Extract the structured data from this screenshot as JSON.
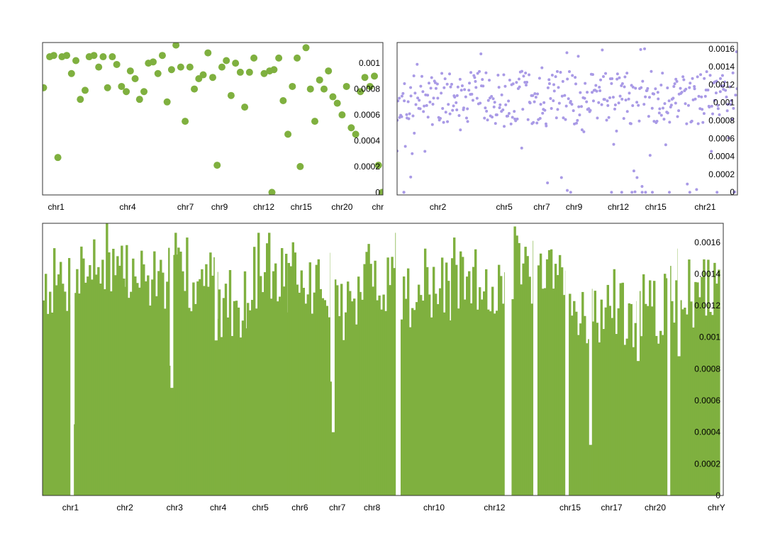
{
  "chart_data": [
    {
      "id": "scatter-top-left",
      "type": "scatter",
      "color": "#7fb03f",
      "point_style": "large-dot",
      "ylim": [
        -2e-05,
        0.00116
      ],
      "xlim": [
        0,
        1
      ],
      "yticks": [
        {
          "value": 0,
          "label": "0"
        },
        {
          "value": 0.0002,
          "label": "0.0002"
        },
        {
          "value": 0.0004,
          "label": "0.0004"
        },
        {
          "value": 0.0006,
          "label": "0.0006"
        },
        {
          "value": 0.0008,
          "label": "0.0008"
        },
        {
          "value": 0.001,
          "label": "0.001"
        }
      ],
      "xticks": [
        {
          "value": 0.04,
          "label": "chr1"
        },
        {
          "value": 0.25,
          "label": "chr4"
        },
        {
          "value": 0.42,
          "label": "chr7"
        },
        {
          "value": 0.52,
          "label": "chr9"
        },
        {
          "value": 0.65,
          "label": "chr12"
        },
        {
          "value": 0.76,
          "label": "chr15"
        },
        {
          "value": 0.88,
          "label": "chr20"
        },
        {
          "value": 0.985,
          "label": "chr"
        }
      ],
      "points": [
        [
          0.003,
          0.00081
        ],
        [
          0.021,
          0.00105
        ],
        [
          0.033,
          0.00106
        ],
        [
          0.045,
          0.00027
        ],
        [
          0.057,
          0.00105
        ],
        [
          0.071,
          0.00106
        ],
        [
          0.085,
          0.00092
        ],
        [
          0.098,
          0.00102
        ],
        [
          0.111,
          0.00072
        ],
        [
          0.125,
          0.00079
        ],
        [
          0.137,
          0.00105
        ],
        [
          0.151,
          0.00106
        ],
        [
          0.165,
          0.00097
        ],
        [
          0.178,
          0.00105
        ],
        [
          0.191,
          0.00081
        ],
        [
          0.205,
          0.00105
        ],
        [
          0.218,
          0.00099
        ],
        [
          0.232,
          0.00082
        ],
        [
          0.246,
          0.00078
        ],
        [
          0.258,
          0.00094
        ],
        [
          0.272,
          0.00088
        ],
        [
          0.285,
          0.00072
        ],
        [
          0.298,
          0.00078
        ],
        [
          0.311,
          0.001
        ],
        [
          0.325,
          0.00101
        ],
        [
          0.339,
          0.00092
        ],
        [
          0.352,
          0.00106
        ],
        [
          0.366,
          0.0007
        ],
        [
          0.379,
          0.00095
        ],
        [
          0.392,
          0.00114
        ],
        [
          0.406,
          0.00097
        ],
        [
          0.419,
          0.00055
        ],
        [
          0.433,
          0.00097
        ],
        [
          0.446,
          0.0008
        ],
        [
          0.459,
          0.00088
        ],
        [
          0.472,
          0.00091
        ],
        [
          0.486,
          0.00108
        ],
        [
          0.5,
          0.00089
        ],
        [
          0.513,
          0.00021
        ],
        [
          0.527,
          0.00097
        ],
        [
          0.54,
          0.00102
        ],
        [
          0.554,
          0.00075
        ],
        [
          0.567,
          0.001
        ],
        [
          0.581,
          0.00093
        ],
        [
          0.594,
          0.00066
        ],
        [
          0.608,
          0.00093
        ],
        [
          0.621,
          0.00104
        ],
        [
          0.651,
          0.00092
        ],
        [
          0.667,
          0.00094
        ],
        [
          0.68,
          0.00095
        ],
        [
          0.674,
          0.0
        ],
        [
          0.694,
          0.00104
        ],
        [
          0.707,
          0.00071
        ],
        [
          0.721,
          0.00045
        ],
        [
          0.734,
          0.00082
        ],
        [
          0.748,
          0.00104
        ],
        [
          0.757,
          0.0002
        ],
        [
          0.774,
          0.00112
        ],
        [
          0.787,
          0.0008
        ],
        [
          0.8,
          0.00055
        ],
        [
          0.814,
          0.00087
        ],
        [
          0.827,
          0.0008
        ],
        [
          0.84,
          0.00094
        ],
        [
          0.853,
          0.00074
        ],
        [
          0.866,
          0.00069
        ],
        [
          0.88,
          0.0006
        ],
        [
          0.893,
          0.00082
        ],
        [
          0.907,
          0.0005
        ],
        [
          0.92,
          0.00045
        ],
        [
          0.934,
          0.00078
        ],
        [
          0.947,
          0.00089
        ],
        [
          0.962,
          0.00082
        ],
        [
          0.975,
          0.0009
        ],
        [
          0.987,
          0.00021
        ],
        [
          0.998,
          0.0
        ]
      ]
    },
    {
      "id": "scatter-top-right",
      "type": "scatter",
      "color": "#a99ae6",
      "point_style": "small-dot",
      "ylim": [
        -3e-05,
        0.00167
      ],
      "xlim": [
        0,
        1
      ],
      "yticks": [
        {
          "value": 0,
          "label": "0"
        },
        {
          "value": 0.0002,
          "label": "0.0002"
        },
        {
          "value": 0.0004,
          "label": "0.0004"
        },
        {
          "value": 0.0006,
          "label": "0.0006"
        },
        {
          "value": 0.0008,
          "label": "0.0008"
        },
        {
          "value": 0.001,
          "label": "0.001"
        },
        {
          "value": 0.0012,
          "label": "0.0012"
        },
        {
          "value": 0.0014,
          "label": "0.0014"
        },
        {
          "value": 0.0016,
          "label": "0.0016"
        }
      ],
      "xticks": [
        {
          "value": 0.12,
          "label": "chr2"
        },
        {
          "value": 0.315,
          "label": "chr5"
        },
        {
          "value": 0.425,
          "label": "chr7"
        },
        {
          "value": 0.52,
          "label": "chr9"
        },
        {
          "value": 0.65,
          "label": "chr12"
        },
        {
          "value": 0.76,
          "label": "chr15"
        },
        {
          "value": 0.905,
          "label": "chr21"
        }
      ],
      "points": []
    },
    {
      "id": "bar-bottom",
      "type": "bar",
      "color": "#7fb03f",
      "ylim": [
        0,
        0.00172
      ],
      "xlim": [
        0,
        1
      ],
      "yticks": [
        {
          "value": 0,
          "label": "0"
        },
        {
          "value": 0.0002,
          "label": "0.0002"
        },
        {
          "value": 0.0004,
          "label": "0.0004"
        },
        {
          "value": 0.0006,
          "label": "0.0006"
        },
        {
          "value": 0.0008,
          "label": "0.0008"
        },
        {
          "value": 0.001,
          "label": "0.001"
        },
        {
          "value": 0.0012,
          "label": "0.0012"
        },
        {
          "value": 0.0014,
          "label": "0.0014"
        },
        {
          "value": 0.0016,
          "label": "0.0016"
        }
      ],
      "xticks": [
        {
          "value": 0.041,
          "label": "chr1"
        },
        {
          "value": 0.121,
          "label": "chr2"
        },
        {
          "value": 0.194,
          "label": "chr3"
        },
        {
          "value": 0.258,
          "label": "chr4"
        },
        {
          "value": 0.32,
          "label": "chr5"
        },
        {
          "value": 0.378,
          "label": "chr6"
        },
        {
          "value": 0.433,
          "label": "chr7"
        },
        {
          "value": 0.484,
          "label": "chr8"
        },
        {
          "value": 0.575,
          "label": "chr10"
        },
        {
          "value": 0.664,
          "label": "chr12"
        },
        {
          "value": 0.775,
          "label": "chr15"
        },
        {
          "value": 0.836,
          "label": "chr17"
        },
        {
          "value": 0.9,
          "label": "chr20"
        },
        {
          "value": 0.99,
          "label": "chrY"
        }
      ],
      "segments": [
        {
          "start": 0.0,
          "end": 0.043,
          "value": 0.00135
        },
        {
          "start": 0.046,
          "end": 0.122,
          "value": 0.00145
        },
        {
          "start": 0.122,
          "end": 0.195,
          "value": 0.00138
        },
        {
          "start": 0.195,
          "end": 0.255,
          "value": 0.00135
        },
        {
          "start": 0.255,
          "end": 0.3,
          "value": 0.00122
        },
        {
          "start": 0.3,
          "end": 0.36,
          "value": 0.00138
        },
        {
          "start": 0.36,
          "end": 0.425,
          "value": 0.00132
        },
        {
          "start": 0.425,
          "end": 0.465,
          "value": 0.0012
        },
        {
          "start": 0.465,
          "end": 0.521,
          "value": 0.00138
        },
        {
          "start": 0.526,
          "end": 0.6,
          "value": 0.00128
        },
        {
          "start": 0.6,
          "end": 0.681,
          "value": 0.00135
        },
        {
          "start": 0.689,
          "end": 0.723,
          "value": 0.00142
        },
        {
          "start": 0.727,
          "end": 0.77,
          "value": 0.00135
        },
        {
          "start": 0.773,
          "end": 0.81,
          "value": 0.00118
        },
        {
          "start": 0.81,
          "end": 0.875,
          "value": 0.00115
        },
        {
          "start": 0.875,
          "end": 0.92,
          "value": 0.00118
        },
        {
          "start": 0.92,
          "end": 0.993,
          "value": 0.00128
        }
      ],
      "dips": [
        {
          "x": 0.043,
          "value": 0.0
        },
        {
          "x": 0.045,
          "value": 0.00045
        },
        {
          "x": 0.189,
          "value": 0.00082
        },
        {
          "x": 0.19,
          "value": 0.00068
        },
        {
          "x": 0.255,
          "value": 0.00098
        },
        {
          "x": 0.425,
          "value": 0.00072
        },
        {
          "x": 0.427,
          "value": 0.0004
        },
        {
          "x": 0.521,
          "value": 0.0
        },
        {
          "x": 0.523,
          "value": 0.00018
        },
        {
          "x": 0.681,
          "value": 0.0
        },
        {
          "x": 0.686,
          "value": 0.0
        },
        {
          "x": 0.723,
          "value": 0.0
        },
        {
          "x": 0.77,
          "value": 0.0
        },
        {
          "x": 0.805,
          "value": 0.00032
        },
        {
          "x": 0.875,
          "value": 0.00085
        },
        {
          "x": 0.92,
          "value": 0.0
        },
        {
          "x": 0.935,
          "value": 0.00088
        }
      ]
    }
  ]
}
